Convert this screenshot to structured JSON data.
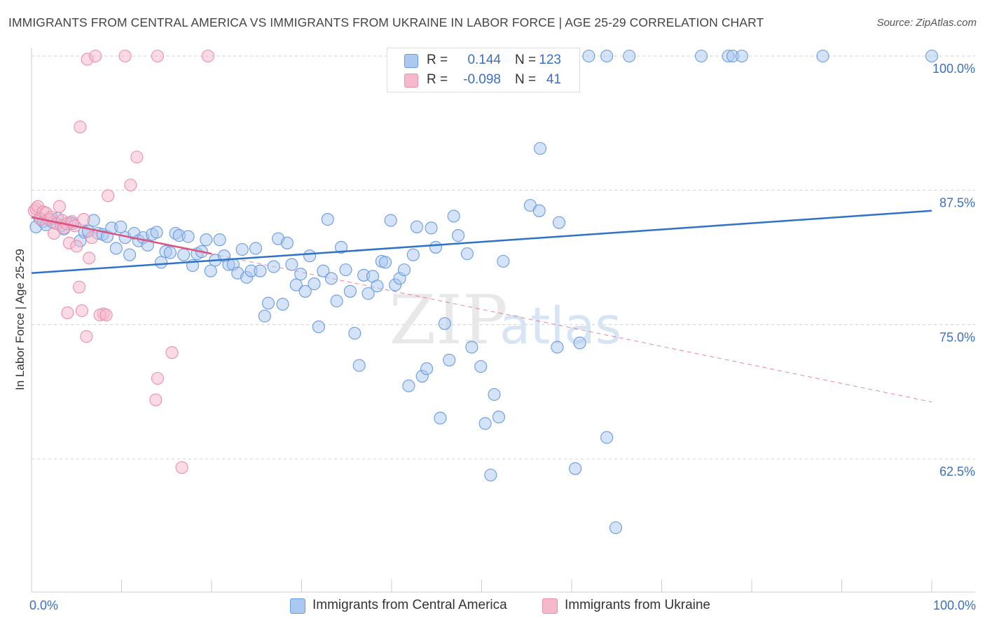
{
  "title": "IMMIGRANTS FROM CENTRAL AMERICA VS IMMIGRANTS FROM UKRAINE IN LABOR FORCE | AGE 25-29 CORRELATION CHART",
  "source": "Source: ZipAtlas.com",
  "watermark": {
    "zip": "ZIP",
    "atlas": "atlas"
  },
  "legend_top": {
    "rows": [
      {
        "r_label": "R =",
        "r_value": "0.144",
        "n_label": "N =",
        "n_value": "123"
      },
      {
        "r_label": "R =",
        "r_value": "-0.098",
        "n_label": "N =",
        "n_value": "41"
      }
    ]
  },
  "legend_bottom": {
    "items": [
      {
        "label": "Immigrants from Central America"
      },
      {
        "label": "Immigrants from Ukraine"
      }
    ]
  },
  "colors": {
    "blue_fill": "#aac8f0",
    "blue_stroke": "#6a9be0",
    "blue_line": "#2f72c8",
    "pink_fill": "#f6b8cb",
    "pink_stroke": "#ec8faa",
    "pink_line": "#e0507c",
    "tick_text": "#3a6fc4",
    "grid": "#cfcfcf"
  },
  "chart_data": {
    "type": "scatter",
    "title": "IMMIGRANTS FROM CENTRAL AMERICA VS IMMIGRANTS FROM UKRAINE IN LABOR FORCE | AGE 25-29 CORRELATION CHART",
    "xlabel": "",
    "ylabel": "In Labor Force | Age 25-29",
    "xlim": [
      0,
      100
    ],
    "ylim": [
      50,
      101
    ],
    "x_tick_labels": [
      "0.0%",
      "100.0%"
    ],
    "y_ticks": [
      100,
      87.5,
      75,
      62.5
    ],
    "y_tick_labels": [
      "100.0%",
      "87.5%",
      "75.0%",
      "62.5%"
    ],
    "grid": "horizontal dashed",
    "legend": "top-center and bottom",
    "series": [
      {
        "name": "Immigrants from Central America",
        "color": "#aac8f0",
        "trend": {
          "x": [
            0,
            100
          ],
          "y": [
            79.8,
            85.6
          ]
        },
        "points": [
          [
            0.5,
            84.1
          ],
          [
            0.9,
            84.9
          ],
          [
            1.3,
            84.6
          ],
          [
            1.6,
            84.3
          ],
          [
            2.1,
            84.8
          ],
          [
            2.4,
            84.5
          ],
          [
            2.9,
            84.9
          ],
          [
            3.3,
            84.2
          ],
          [
            3.6,
            83.9
          ],
          [
            4.3,
            84.5
          ],
          [
            4.6,
            84.4
          ],
          [
            5.4,
            82.8
          ],
          [
            5.9,
            83.6
          ],
          [
            6.3,
            83.7
          ],
          [
            6.9,
            84.7
          ],
          [
            7.4,
            83.5
          ],
          [
            7.9,
            83.4
          ],
          [
            8.4,
            83.2
          ],
          [
            8.9,
            84.0
          ],
          [
            9.4,
            82.1
          ],
          [
            9.9,
            84.1
          ],
          [
            10.4,
            83.1
          ],
          [
            10.9,
            81.5
          ],
          [
            11.4,
            83.5
          ],
          [
            11.9,
            82.8
          ],
          [
            12.4,
            83.1
          ],
          [
            12.9,
            82.4
          ],
          [
            13.4,
            83.4
          ],
          [
            13.9,
            83.6
          ],
          [
            14.4,
            80.8
          ],
          [
            14.9,
            81.8
          ],
          [
            15.4,
            81.7
          ],
          [
            16.0,
            83.5
          ],
          [
            16.4,
            83.3
          ],
          [
            16.9,
            81.5
          ],
          [
            17.4,
            83.2
          ],
          [
            17.9,
            80.5
          ],
          [
            18.4,
            81.6
          ],
          [
            18.9,
            81.8
          ],
          [
            19.4,
            82.9
          ],
          [
            19.9,
            80.0
          ],
          [
            20.4,
            81.0
          ],
          [
            20.9,
            82.9
          ],
          [
            21.4,
            81.4
          ],
          [
            21.9,
            80.6
          ],
          [
            22.4,
            80.6
          ],
          [
            22.9,
            79.8
          ],
          [
            23.4,
            82.0
          ],
          [
            23.9,
            79.4
          ],
          [
            24.4,
            80.0
          ],
          [
            24.9,
            82.1
          ],
          [
            25.4,
            80.0
          ],
          [
            25.9,
            75.8
          ],
          [
            26.3,
            77.0
          ],
          [
            26.9,
            80.4
          ],
          [
            27.4,
            83.0
          ],
          [
            27.9,
            76.9
          ],
          [
            28.4,
            82.6
          ],
          [
            28.9,
            80.6
          ],
          [
            29.4,
            78.7
          ],
          [
            29.9,
            79.7
          ],
          [
            30.4,
            78.1
          ],
          [
            30.9,
            81.4
          ],
          [
            31.4,
            78.8
          ],
          [
            31.9,
            74.8
          ],
          [
            32.4,
            80.0
          ],
          [
            32.9,
            84.8
          ],
          [
            33.3,
            79.3
          ],
          [
            33.9,
            77.2
          ],
          [
            34.4,
            82.2
          ],
          [
            34.9,
            80.1
          ],
          [
            35.4,
            78.1
          ],
          [
            35.9,
            74.2
          ],
          [
            36.4,
            71.2
          ],
          [
            36.9,
            79.6
          ],
          [
            37.4,
            77.9
          ],
          [
            37.9,
            79.5
          ],
          [
            38.4,
            78.6
          ],
          [
            38.9,
            80.9
          ],
          [
            39.3,
            80.8
          ],
          [
            39.9,
            84.7
          ],
          [
            40.4,
            78.7
          ],
          [
            40.9,
            79.3
          ],
          [
            41.4,
            80.1
          ],
          [
            41.9,
            69.3
          ],
          [
            42.4,
            81.5
          ],
          [
            42.8,
            84.1
          ],
          [
            43.4,
            70.2
          ],
          [
            43.9,
            70.9
          ],
          [
            44.4,
            84.0
          ],
          [
            44.9,
            82.2
          ],
          [
            45.4,
            66.3
          ],
          [
            45.9,
            75.1
          ],
          [
            46.4,
            71.7
          ],
          [
            46.9,
            85.1
          ],
          [
            47.4,
            83.3
          ],
          [
            48.4,
            81.6
          ],
          [
            48.9,
            72.9
          ],
          [
            49.9,
            71.1
          ],
          [
            50.4,
            65.8
          ],
          [
            51.0,
            61.0
          ],
          [
            51.4,
            68.5
          ],
          [
            51.9,
            66.4
          ],
          [
            52.4,
            80.9
          ],
          [
            53.0,
            100.0
          ],
          [
            55.4,
            86.1
          ],
          [
            56.4,
            85.6
          ],
          [
            56.5,
            91.4
          ],
          [
            58.4,
            72.9
          ],
          [
            58.6,
            84.5
          ],
          [
            60.4,
            61.6
          ],
          [
            60.9,
            73.3
          ],
          [
            61.9,
            100.0
          ],
          [
            63.9,
            100.0
          ],
          [
            63.9,
            64.5
          ],
          [
            64.9,
            56.1
          ],
          [
            66.4,
            100.0
          ],
          [
            74.4,
            100.0
          ],
          [
            77.4,
            100.0
          ],
          [
            77.9,
            100.0
          ],
          [
            78.9,
            100.0
          ],
          [
            87.9,
            100.0
          ],
          [
            100.0,
            100.0
          ]
        ]
      },
      {
        "name": "Immigrants from Ukraine",
        "color": "#f6b8cb",
        "trend": {
          "x": [
            0,
            20
          ],
          "y": [
            85.0,
            81.6
          ]
        },
        "trend_extended": {
          "x": [
            20,
            100
          ],
          "y": [
            81.6,
            67.8
          ]
        },
        "points": [
          [
            0.3,
            85.6
          ],
          [
            0.5,
            85.8
          ],
          [
            0.7,
            86.0
          ],
          [
            1.0,
            84.8
          ],
          [
            1.3,
            85.5
          ],
          [
            1.6,
            85.4
          ],
          [
            1.9,
            84.8
          ],
          [
            2.2,
            85.0
          ],
          [
            2.5,
            83.5
          ],
          [
            2.8,
            84.4
          ],
          [
            3.1,
            86.0
          ],
          [
            3.4,
            84.7
          ],
          [
            3.6,
            84.0
          ],
          [
            3.9,
            84.4
          ],
          [
            4.2,
            82.6
          ],
          [
            4.5,
            84.6
          ],
          [
            4.8,
            84.2
          ],
          [
            5.0,
            82.3
          ],
          [
            5.3,
            78.5
          ],
          [
            5.6,
            76.3
          ],
          [
            5.8,
            84.8
          ],
          [
            6.1,
            73.9
          ],
          [
            6.4,
            81.2
          ],
          [
            6.7,
            83.1
          ],
          [
            6.2,
            99.7
          ],
          [
            5.4,
            93.4
          ],
          [
            7.1,
            100.0
          ],
          [
            8.0,
            76.0
          ],
          [
            7.6,
            75.9
          ],
          [
            8.3,
            75.9
          ],
          [
            8.5,
            87.0
          ],
          [
            10.4,
            100.0
          ],
          [
            11.0,
            88.0
          ],
          [
            11.7,
            90.6
          ],
          [
            14.0,
            100.0
          ],
          [
            14.0,
            70.0
          ],
          [
            13.8,
            68.0
          ],
          [
            15.6,
            72.4
          ],
          [
            16.7,
            61.7
          ],
          [
            19.6,
            100.0
          ],
          [
            4.0,
            76.1
          ]
        ]
      }
    ]
  }
}
